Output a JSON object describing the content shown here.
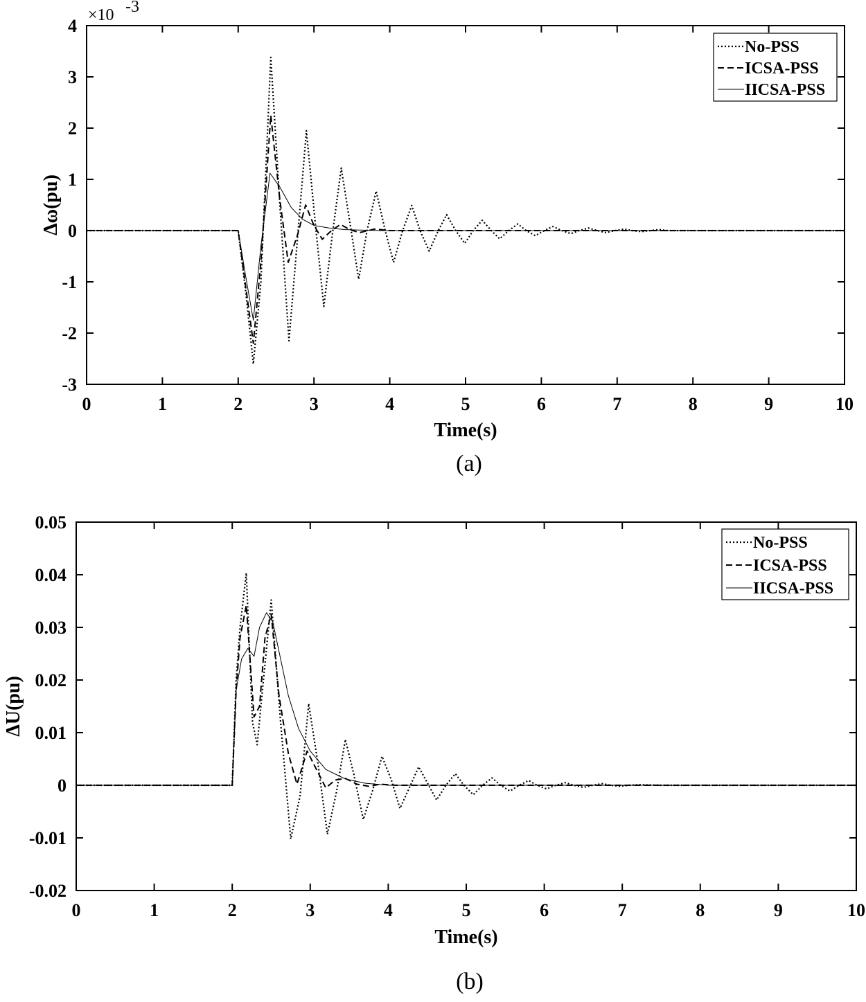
{
  "chart_data": [
    {
      "type": "line",
      "panel_label": "(a)",
      "xlabel": "Time(s)",
      "ylabel": "Δω(pu)",
      "y_multiplier": "×10",
      "y_multiplier_exp": "-3",
      "xlim": [
        0,
        10
      ],
      "ylim": [
        -3,
        4
      ],
      "xticks": [
        0,
        1,
        2,
        3,
        4,
        5,
        6,
        7,
        8,
        9,
        10
      ],
      "yticks": [
        -3,
        -2,
        -1,
        0,
        1,
        2,
        3,
        4
      ],
      "x_tick_labels": [
        "0",
        "1",
        "2",
        "3",
        "4",
        "5",
        "6",
        "7",
        "8",
        "9",
        "10"
      ],
      "y_tick_labels": [
        "-3",
        "-2",
        "-1",
        "0",
        "1",
        "2",
        "3",
        "4"
      ],
      "legend_position": "top-right",
      "series": [
        {
          "name": "No-PSS",
          "style": "dotted",
          "color": "#000000",
          "x": [
            0,
            2.0,
            2.1,
            2.2,
            2.3,
            2.43,
            2.55,
            2.67,
            2.78,
            2.9,
            3.02,
            3.13,
            3.24,
            3.36,
            3.48,
            3.59,
            3.7,
            3.82,
            3.94,
            4.05,
            4.17,
            4.29,
            4.4,
            4.52,
            4.64,
            4.75,
            4.87,
            4.99,
            5.1,
            5.22,
            5.34,
            5.45,
            5.57,
            5.69,
            5.8,
            5.92,
            6.04,
            6.15,
            6.27,
            6.39,
            6.5,
            6.62,
            6.74,
            6.85,
            6.97,
            7.09,
            7.2,
            7.32,
            7.44,
            7.55,
            7.67,
            8.0,
            10.0
          ],
          "y": [
            0,
            0,
            -1.2,
            -2.6,
            -1.0,
            3.38,
            0.5,
            -2.15,
            -0.2,
            1.95,
            0.1,
            -1.48,
            -0.1,
            1.22,
            0.1,
            -0.95,
            0,
            0.77,
            0,
            -0.62,
            0,
            0.49,
            0,
            -0.4,
            0,
            0.31,
            0,
            -0.25,
            0,
            0.2,
            0,
            -0.16,
            0,
            0.13,
            0,
            -0.1,
            0,
            0.08,
            0,
            -0.06,
            0,
            0.05,
            0,
            -0.04,
            0,
            0.03,
            0,
            -0.02,
            0,
            0.02,
            0,
            0,
            0
          ]
        },
        {
          "name": "ICSA-PSS",
          "style": "dashed",
          "color": "#000000",
          "x": [
            0,
            2.0,
            2.1,
            2.2,
            2.3,
            2.43,
            2.55,
            2.66,
            2.78,
            2.89,
            3.0,
            3.11,
            3.23,
            3.35,
            3.47,
            3.6,
            3.8,
            4.0,
            10.0
          ],
          "y": [
            0,
            0,
            -1.1,
            -2.2,
            -0.6,
            2.25,
            0.6,
            -0.62,
            -0.1,
            0.5,
            0.1,
            -0.17,
            0,
            0.12,
            0.02,
            -0.04,
            0.03,
            0,
            0
          ]
        },
        {
          "name": "IICSA-PSS",
          "style": "solid",
          "color": "#000000",
          "x": [
            0,
            2.0,
            2.1,
            2.2,
            2.3,
            2.42,
            2.55,
            2.7,
            2.85,
            3.0,
            3.2,
            3.4,
            3.6,
            3.9,
            10.0
          ],
          "y": [
            0,
            0,
            -0.9,
            -1.75,
            -0.3,
            1.12,
            0.85,
            0.45,
            0.22,
            0.1,
            0.05,
            0.02,
            0.01,
            0,
            0
          ]
        }
      ]
    },
    {
      "type": "line",
      "panel_label": "(b)",
      "xlabel": "Time(s)",
      "ylabel": "ΔU(pu)",
      "xlim": [
        0,
        10
      ],
      "ylim": [
        -0.02,
        0.05
      ],
      "xticks": [
        0,
        1,
        2,
        3,
        4,
        5,
        6,
        7,
        8,
        9,
        10
      ],
      "yticks": [
        -0.02,
        -0.01,
        0,
        0.01,
        0.02,
        0.03,
        0.04,
        0.05
      ],
      "x_tick_labels": [
        "0",
        "1",
        "2",
        "3",
        "4",
        "5",
        "6",
        "7",
        "8",
        "9",
        "10"
      ],
      "y_tick_labels": [
        "-0.02",
        "-0.01",
        "0",
        "0.01",
        "0.02",
        "0.03",
        "0.04",
        "0.05"
      ],
      "legend_position": "top-right",
      "series": [
        {
          "name": "No-PSS",
          "style": "dotted",
          "color": "#000000",
          "x": [
            0,
            2.0,
            2.05,
            2.1,
            2.18,
            2.26,
            2.32,
            2.4,
            2.5,
            2.62,
            2.75,
            2.87,
            2.98,
            3.1,
            3.22,
            3.34,
            3.45,
            3.56,
            3.68,
            3.8,
            3.92,
            4.04,
            4.15,
            4.27,
            4.39,
            4.5,
            4.62,
            4.74,
            4.86,
            4.97,
            5.09,
            5.21,
            5.33,
            5.44,
            5.56,
            5.68,
            5.8,
            5.91,
            6.03,
            6.15,
            6.27,
            6.38,
            6.5,
            6.62,
            6.74,
            6.85,
            6.97,
            7.09,
            7.21,
            7.5,
            10.0
          ],
          "y": [
            0,
            0,
            0.02,
            0.03,
            0.0403,
            0.012,
            0.0077,
            0.02,
            0.0352,
            0.012,
            -0.0102,
            -0.002,
            0.0155,
            0.004,
            -0.0093,
            -0.001,
            0.0087,
            0.002,
            -0.0065,
            -0.001,
            0.0055,
            0.001,
            -0.0044,
            -0.0005,
            0.0035,
            0.0005,
            -0.0028,
            0,
            0.0022,
            0,
            -0.0018,
            0,
            0.0014,
            0,
            -0.0011,
            0,
            0.0009,
            0,
            -0.0007,
            0,
            0.0005,
            0,
            -0.0004,
            0,
            0.0003,
            0,
            -0.0002,
            0,
            0.0001,
            0,
            0
          ]
        },
        {
          "name": "ICSA-PSS",
          "style": "dashed",
          "color": "#000000",
          "x": [
            0,
            2.0,
            2.05,
            2.1,
            2.18,
            2.28,
            2.35,
            2.42,
            2.5,
            2.6,
            2.72,
            2.83,
            2.96,
            3.08,
            3.2,
            3.32,
            3.45,
            3.6,
            3.75,
            3.9,
            4.1,
            10.0
          ],
          "y": [
            0,
            0,
            0.018,
            0.028,
            0.0342,
            0.013,
            0.015,
            0.028,
            0.0325,
            0.017,
            0.006,
            0.0002,
            0.0065,
            0.003,
            -0.0005,
            0.001,
            0.0013,
            0.0002,
            -0.0002,
            0.0002,
            0,
            0
          ]
        },
        {
          "name": "IICSA-PSS",
          "style": "solid",
          "color": "#000000",
          "x": [
            0,
            2.0,
            2.05,
            2.12,
            2.2,
            2.28,
            2.35,
            2.44,
            2.52,
            2.62,
            2.72,
            2.85,
            3.0,
            3.2,
            3.45,
            3.7,
            4.0,
            10.0
          ],
          "y": [
            0,
            0,
            0.018,
            0.024,
            0.026,
            0.0245,
            0.03,
            0.0328,
            0.031,
            0.024,
            0.017,
            0.0108,
            0.0065,
            0.003,
            0.0012,
            0.0004,
            0,
            0
          ]
        }
      ]
    }
  ]
}
